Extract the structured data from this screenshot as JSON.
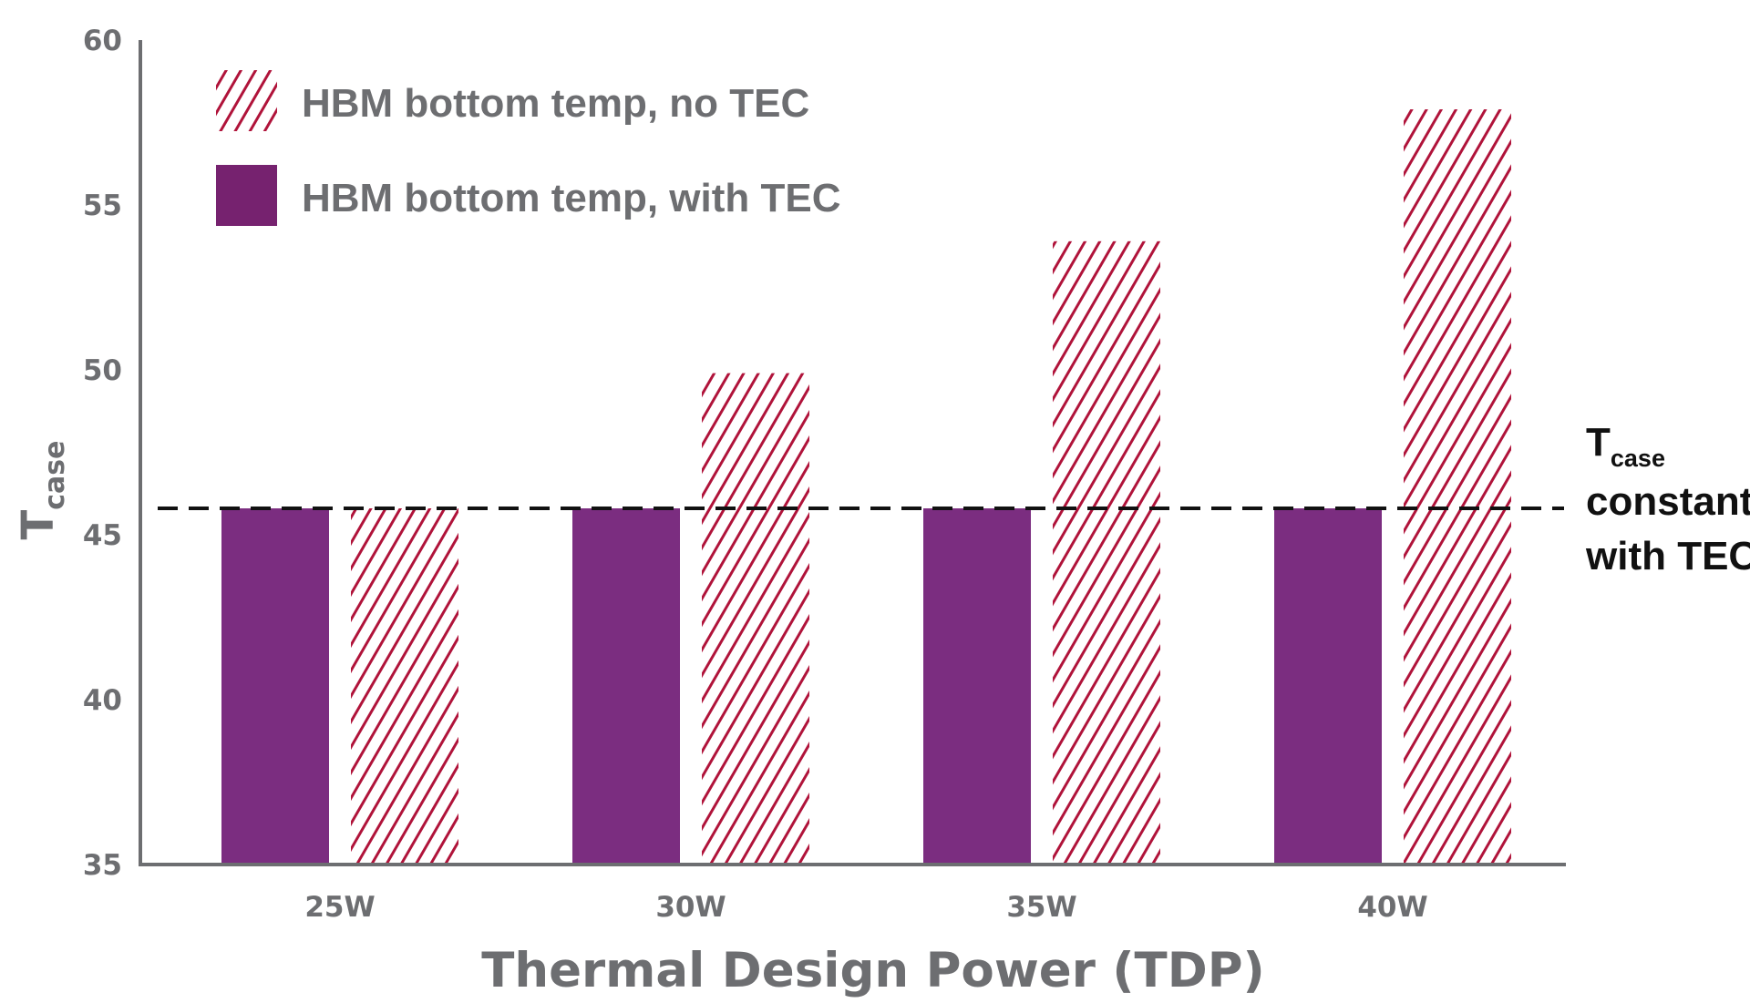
{
  "chart_data": {
    "type": "bar",
    "title": "",
    "xlabel": "Thermal Design Power (TDP)",
    "ylabel_main": "T",
    "ylabel_sub": "case",
    "categories": [
      "25W",
      "30W",
      "35W",
      "40W"
    ],
    "ylim": [
      35,
      60
    ],
    "yticks": [
      "35",
      "40",
      "45",
      "50",
      "55",
      "60"
    ],
    "grid": false,
    "legend_position": "top-left",
    "series": [
      {
        "name": "HBM bottom temp, with TEC",
        "values": [
          45.8,
          45.8,
          45.8,
          45.8
        ],
        "style": "solid",
        "color": "#7b2d80"
      },
      {
        "name": "HBM bottom temp, no TEC",
        "values": [
          45.8,
          49.9,
          53.9,
          57.9
        ],
        "style": "hatched",
        "color": "#b0133a"
      }
    ],
    "reference_line": {
      "value": 45.8,
      "style": "dashed",
      "label_main": "T",
      "label_sub": "case",
      "label_line2": "constant",
      "label_line3": "with TEC"
    }
  },
  "colors": {
    "axis": "#6d6e71",
    "text_gray": "#6d6e71",
    "with_tec": "#7b2d80",
    "legend_with_tec": "#76226f",
    "no_tec": "#b0133a",
    "dash": "#111111"
  }
}
